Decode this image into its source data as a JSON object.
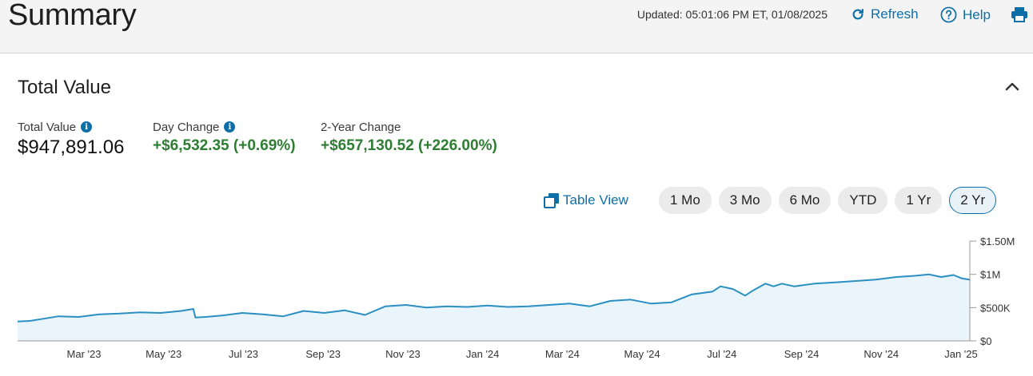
{
  "header": {
    "title": "Summary",
    "updated": "Updated: 05:01:06 PM ET, 01/08/2025",
    "refresh_label": "Refresh",
    "help_label": "Help"
  },
  "section": {
    "title": "Total Value"
  },
  "metrics": {
    "total_value": {
      "label": "Total Value",
      "value": "$947,891.06"
    },
    "day_change": {
      "label": "Day Change",
      "value": "+$6,532.35 (+0.69%)"
    },
    "period_change": {
      "label": "2-Year Change",
      "value": "+$657,130.52 (+226.00%)"
    }
  },
  "table_view_label": "Table View",
  "ranges": [
    "1 Mo",
    "3 Mo",
    "6 Mo",
    "YTD",
    "1 Yr",
    "2 Yr"
  ],
  "active_range": "2 Yr",
  "colors": {
    "accent": "#0e6fa8",
    "positive": "#2d7d32",
    "line": "#2a8fc2",
    "area": "#eaf4fb"
  },
  "chart_data": {
    "type": "area",
    "x_tick_labels": [
      "Mar '23",
      "May '23",
      "Jul '23",
      "Sep '23",
      "Nov '23",
      "Jan '24",
      "Mar '24",
      "May '24",
      "Jul '24",
      "Sep '24",
      "Nov '24",
      "Jan '25"
    ],
    "y_tick_labels": [
      "$1.50M",
      "$1M",
      "$500K",
      "$0"
    ],
    "y_ticks": [
      1500000,
      1000000,
      500000,
      0
    ],
    "ylim": [
      0,
      1500000
    ],
    "x": [
      0,
      0.3,
      0.7,
      1,
      1.5,
      2,
      2.5,
      3,
      3.5,
      4,
      4.3,
      4.35,
      4.6,
      5,
      5.5,
      6,
      6.5,
      7,
      7.5,
      8,
      8.5,
      9,
      9.5,
      10,
      10.5,
      11,
      11.5,
      12,
      12.5,
      13,
      13.5,
      14,
      14.5,
      15,
      15.5,
      16,
      16.5,
      17,
      17.2,
      17.5,
      17.8,
      18,
      18.3,
      18.5,
      18.7,
      19,
      19.5,
      20,
      20.5,
      21,
      21.5,
      22,
      22.3,
      22.6,
      22.9,
      23.1,
      23.3
    ],
    "values": [
      290000,
      300000,
      340000,
      370000,
      360000,
      400000,
      410000,
      430000,
      420000,
      450000,
      480000,
      350000,
      360000,
      380000,
      420000,
      400000,
      370000,
      450000,
      420000,
      460000,
      390000,
      520000,
      540000,
      500000,
      520000,
      510000,
      530000,
      510000,
      520000,
      540000,
      560000,
      520000,
      600000,
      620000,
      560000,
      580000,
      700000,
      740000,
      820000,
      780000,
      680000,
      760000,
      860000,
      820000,
      860000,
      820000,
      860000,
      880000,
      900000,
      920000,
      960000,
      980000,
      1000000,
      960000,
      990000,
      940000,
      920000
    ]
  }
}
